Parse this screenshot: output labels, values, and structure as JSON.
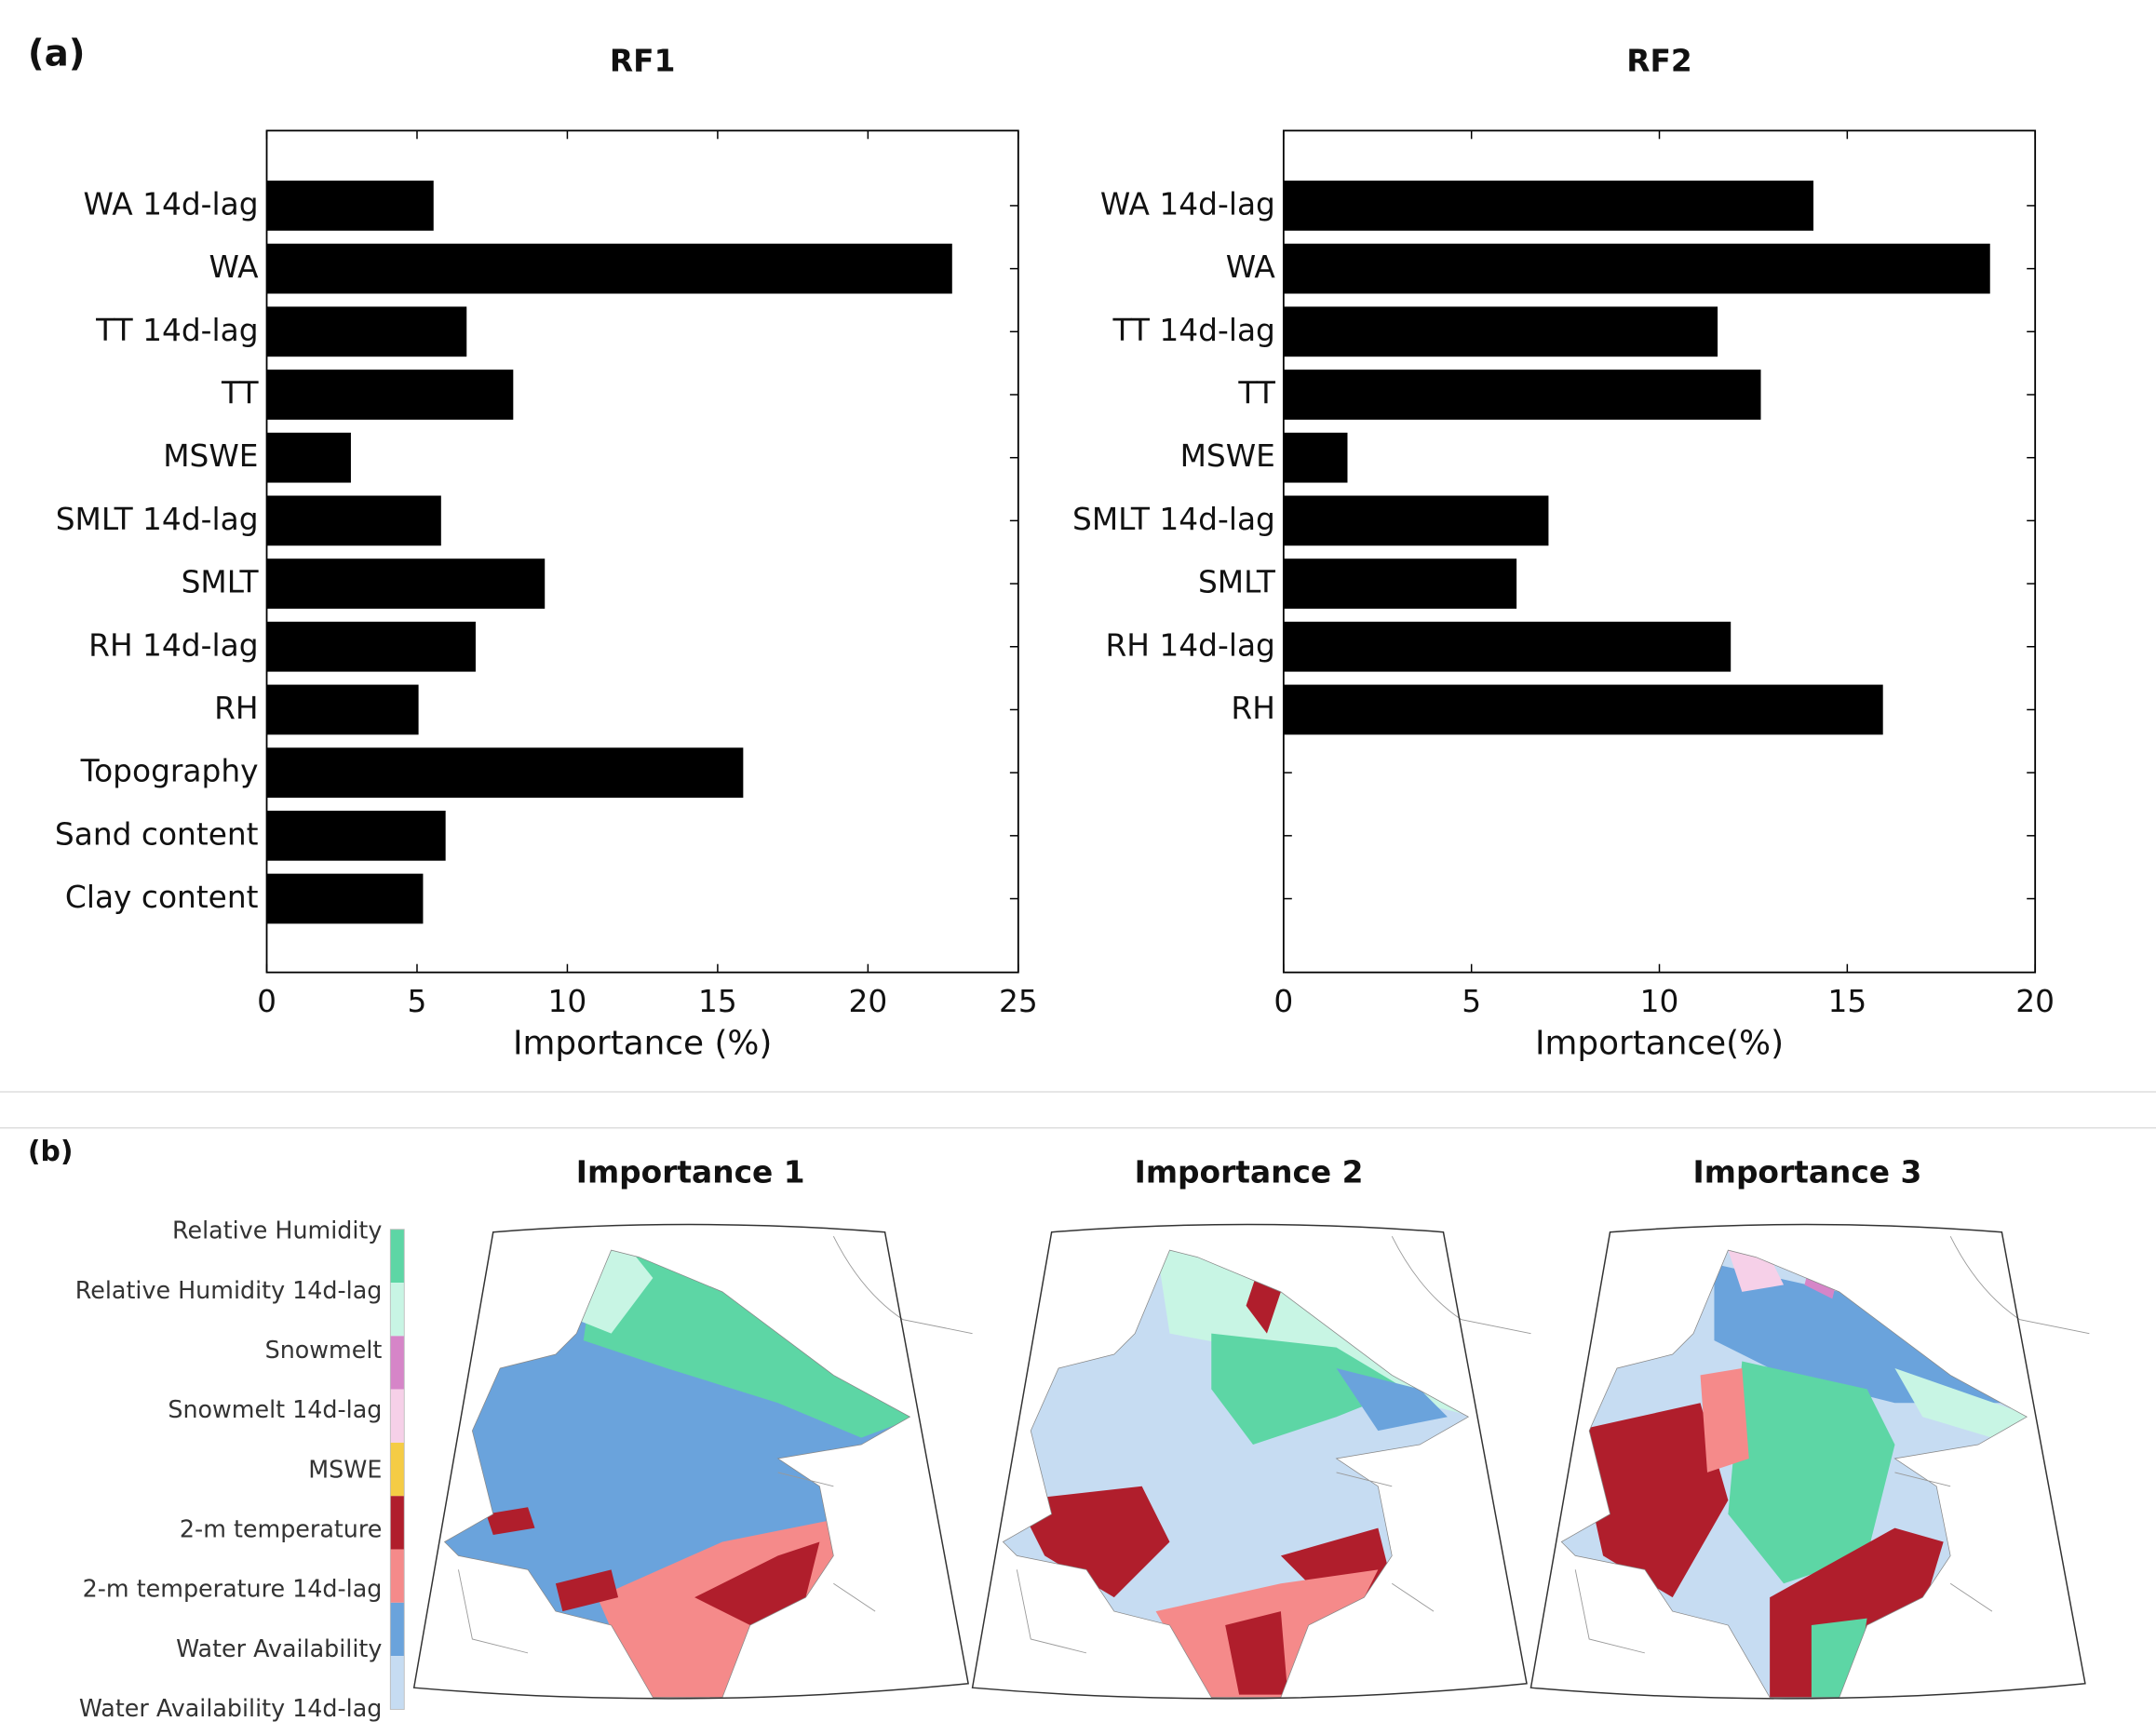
{
  "panel_labels": [
    "(a)",
    "(b)"
  ],
  "chart_data": [
    {
      "type": "barh",
      "title": "RF1",
      "xlabel": "Importance (%)",
      "color": "#000000",
      "categories": [
        "WA 14d-lag",
        "WA",
        "TT 14d-lag",
        "TT",
        "MSWE",
        "SMLT 14d-lag",
        "SMLT",
        "RH 14d-lag",
        "RH",
        "Topography",
        "Sand content",
        "Clay content"
      ],
      "values": [
        5.55,
        22.8,
        6.65,
        8.2,
        2.8,
        5.8,
        9.25,
        6.95,
        5.05,
        15.85,
        5.95,
        5.2
      ],
      "xlim": [
        0,
        25
      ],
      "xticks": [
        0,
        5,
        10,
        15,
        20,
        25
      ]
    },
    {
      "type": "barh",
      "title": "RF2",
      "xlabel": "Importance(%)",
      "color": "#000000",
      "categories": [
        "WA 14d-lag",
        "WA",
        "TT 14d-lag",
        "TT",
        "MSWE",
        "SMLT 14d-lag",
        "SMLT",
        "RH 14d-lag",
        "RH",
        null,
        null,
        null
      ],
      "values": [
        14.1,
        18.8,
        11.55,
        12.7,
        1.7,
        7.05,
        6.2,
        11.9,
        15.95,
        null,
        null,
        null
      ],
      "xlim": [
        0,
        20
      ],
      "xticks": [
        0,
        5,
        10,
        15,
        20
      ]
    }
  ],
  "maps": {
    "titles": [
      "Importance 1",
      "Importance 2",
      "Importance 3"
    ],
    "legend": [
      {
        "label": "Relative Humidity",
        "color": "#5dd6a5"
      },
      {
        "label": "Relative Humidity 14d-lag",
        "color": "#c8f5e4"
      },
      {
        "label": "Snowmelt",
        "color": "#d685c8"
      },
      {
        "label": "Snowmelt 14d-lag",
        "color": "#f6d0e8"
      },
      {
        "label": "MSWE",
        "color": "#f5cc45"
      },
      {
        "label": "2-m temperature",
        "color": "#b01e2c"
      },
      {
        "label": "2-m temperature 14d-lag",
        "color": "#f58a8a"
      },
      {
        "label": "Water Availability",
        "color": "#6aa3dc"
      },
      {
        "label": "Water Availability 14d-lag",
        "color": "#c6dcf2"
      }
    ]
  }
}
